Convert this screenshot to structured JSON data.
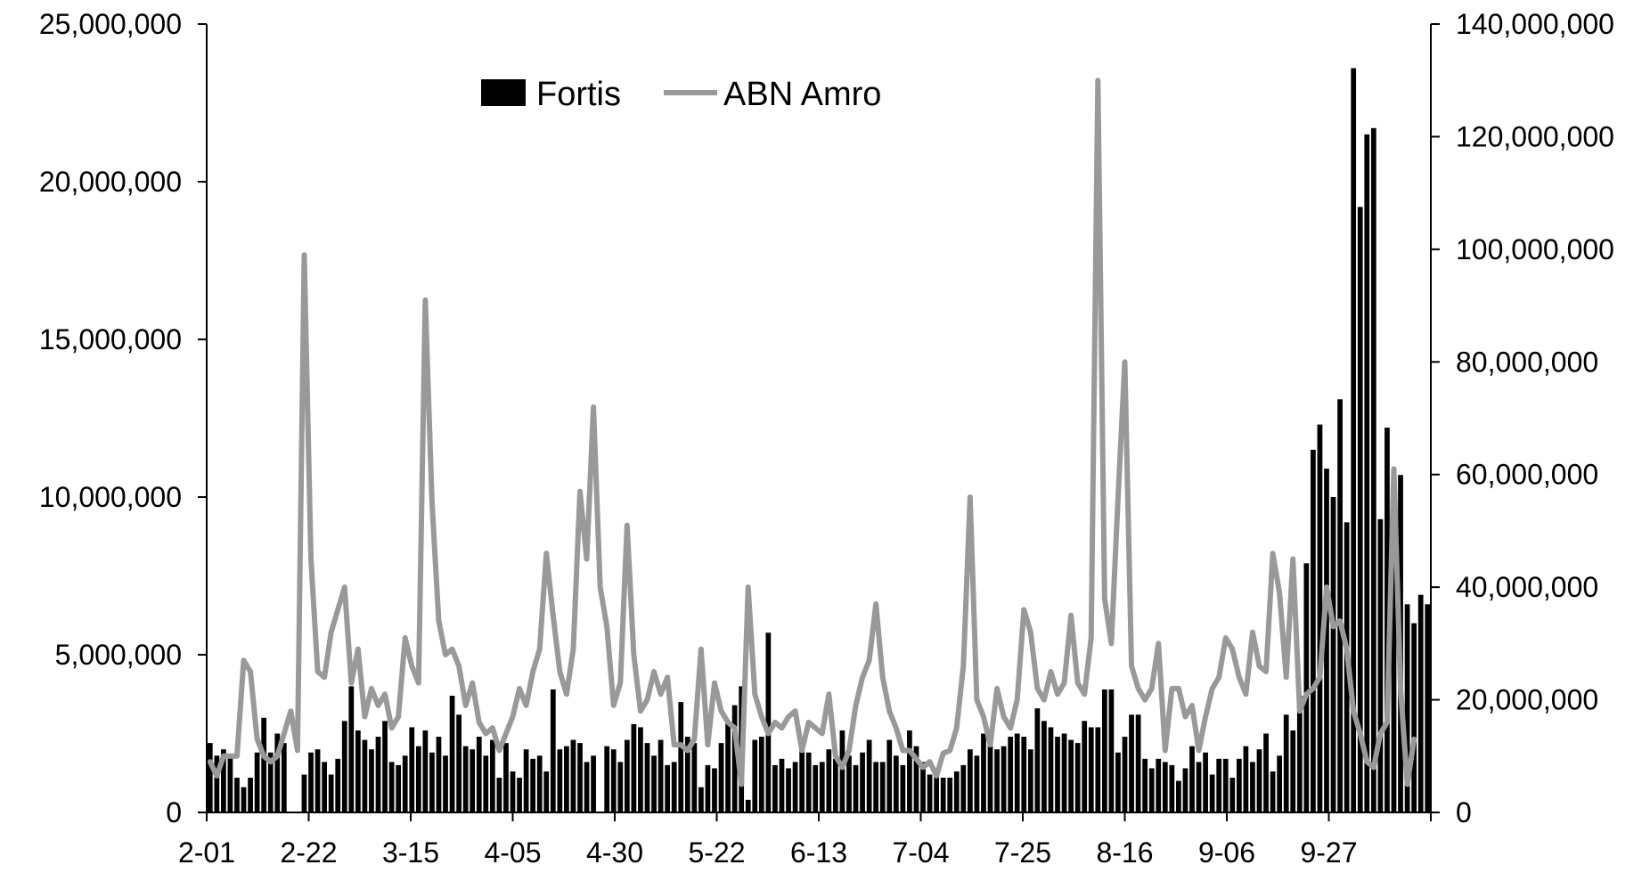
{
  "chart_data": {
    "type": "bar+line",
    "x_tick_labels": [
      "2-01",
      "2-22",
      "3-15",
      "4-05",
      "4-30",
      "5-22",
      "6-13",
      "7-04",
      "7-25",
      "8-16",
      "9-06",
      "9-27"
    ],
    "y_left": {
      "lim": [
        0,
        25000000
      ],
      "ticks": [
        0,
        5000000,
        10000000,
        15000000,
        20000000,
        25000000
      ],
      "tick_labels": [
        "0",
        "5,000,000",
        "10,000,000",
        "15,000,000",
        "20,000,000",
        "25,000,000"
      ]
    },
    "y_right": {
      "lim": [
        0,
        140000000
      ],
      "ticks": [
        0,
        20000000,
        40000000,
        60000000,
        80000000,
        100000000,
        120000000,
        140000000
      ],
      "tick_labels": [
        "0",
        "20,000,000",
        "40,000,000",
        "60,000,000",
        "80,000,000",
        "100,000,000",
        "120,000,000",
        "140,000,000"
      ]
    },
    "legend": {
      "placement": "top-left"
    },
    "series": [
      {
        "name": "Fortis",
        "kind": "bar",
        "axis": "left",
        "color": "#000000",
        "values": [
          2200000,
          1800000,
          2000000,
          1800000,
          1100000,
          800000,
          1100000,
          1900000,
          3000000,
          1900000,
          2500000,
          2200000,
          0,
          0,
          1200000,
          1900000,
          2000000,
          1600000,
          1200000,
          1700000,
          2900000,
          4000000,
          2600000,
          2300000,
          2000000,
          2400000,
          2900000,
          1600000,
          1500000,
          1800000,
          2700000,
          2100000,
          2600000,
          1900000,
          2400000,
          1800000,
          3700000,
          3100000,
          2100000,
          2000000,
          2400000,
          1800000,
          2300000,
          1100000,
          2200000,
          1300000,
          1100000,
          2000000,
          1700000,
          1800000,
          1300000,
          3900000,
          2000000,
          2100000,
          2300000,
          2200000,
          1600000,
          1800000,
          0,
          2100000,
          2000000,
          1600000,
          2300000,
          2800000,
          2700000,
          2200000,
          1800000,
          2300000,
          1500000,
          1600000,
          3500000,
          2400000,
          2200000,
          800000,
          1500000,
          1400000,
          2200000,
          2900000,
          3400000,
          4000000,
          400000,
          2300000,
          2400000,
          5700000,
          1500000,
          1700000,
          1400000,
          1600000,
          2100000,
          1900000,
          1500000,
          1600000,
          2000000,
          1700000,
          2600000,
          1800000,
          1500000,
          1900000,
          2300000,
          1600000,
          1600000,
          2300000,
          1800000,
          1500000,
          2600000,
          2100000,
          1600000,
          1200000,
          1300000,
          1100000,
          1100000,
          1300000,
          1500000,
          2000000,
          1800000,
          2500000,
          2500000,
          2000000,
          2100000,
          2400000,
          2500000,
          2400000,
          2000000,
          3300000,
          2900000,
          2700000,
          2400000,
          2500000,
          2300000,
          2200000,
          2900000,
          2700000,
          2700000,
          3900000,
          3900000,
          1900000,
          2400000,
          3100000,
          3100000,
          1700000,
          1400000,
          1700000,
          1600000,
          1500000,
          1000000,
          1400000,
          2100000,
          1600000,
          1900000,
          1200000,
          1700000,
          1700000,
          1100000,
          1700000,
          2100000,
          1600000,
          2000000,
          2500000,
          1300000,
          1800000,
          3100000,
          2600000,
          3700000,
          7900000,
          11500000,
          12300000,
          10900000,
          10000000,
          13100000,
          9200000,
          23600000,
          19200000,
          21500000,
          21700000,
          9300000,
          12200000,
          9900000,
          10700000,
          6600000,
          6000000,
          6900000,
          6600000
        ]
      },
      {
        "name": "ABN Amro",
        "kind": "line",
        "axis": "right",
        "color": "#999999",
        "values": [
          9000000,
          6500000,
          10000000,
          10000000,
          10000000,
          27000000,
          25000000,
          13000000,
          10000000,
          9000000,
          10000000,
          14000000,
          18000000,
          11000000,
          99000000,
          45000000,
          25000000,
          24000000,
          32000000,
          36000000,
          40000000,
          23000000,
          29000000,
          17000000,
          22000000,
          19000000,
          21000000,
          15000000,
          17000000,
          31000000,
          26000000,
          23000000,
          91000000,
          55000000,
          34000000,
          28000000,
          29000000,
          26000000,
          19000000,
          23000000,
          16000000,
          14000000,
          15000000,
          11000000,
          14000000,
          17000000,
          22000000,
          19000000,
          25000000,
          29000000,
          46000000,
          35000000,
          25000000,
          21000000,
          29000000,
          57000000,
          45000000,
          72000000,
          40000000,
          33000000,
          19000000,
          23000000,
          51000000,
          28000000,
          18000000,
          20000000,
          25000000,
          21000000,
          24000000,
          12000000,
          12000000,
          11000000,
          13000000,
          29000000,
          12000000,
          23000000,
          18000000,
          16000000,
          15000000,
          5000000,
          40000000,
          21000000,
          17000000,
          14000000,
          16000000,
          15000000,
          17000000,
          18000000,
          11000000,
          16000000,
          15000000,
          14000000,
          21000000,
          10000000,
          8000000,
          11000000,
          19000000,
          24000000,
          27000000,
          37000000,
          24000000,
          18000000,
          15000000,
          11000000,
          11000000,
          9500000,
          8000000,
          9000000,
          6500000,
          10500000,
          11000000,
          15000000,
          26000000,
          56000000,
          20000000,
          17000000,
          12000000,
          22000000,
          17000000,
          15000000,
          20000000,
          36000000,
          32000000,
          22000000,
          20000000,
          25000000,
          21000000,
          23000000,
          35000000,
          23000000,
          21000000,
          31000000,
          130000000,
          38000000,
          30000000,
          56000000,
          80000000,
          26000000,
          22000000,
          20000000,
          22000000,
          30000000,
          11000000,
          22000000,
          22000000,
          17000000,
          19000000,
          11000000,
          17000000,
          22000000,
          24000000,
          31000000,
          29000000,
          24000000,
          21000000,
          32000000,
          26000000,
          25000000,
          46000000,
          39000000,
          24000000,
          45000000,
          18000000,
          21000000,
          22000000,
          24000000,
          40000000,
          33000000,
          34000000,
          29000000,
          18000000,
          14000000,
          9000000,
          8000000,
          14000000,
          16000000,
          61000000,
          22000000,
          5000000,
          13000000
        ]
      }
    ]
  }
}
